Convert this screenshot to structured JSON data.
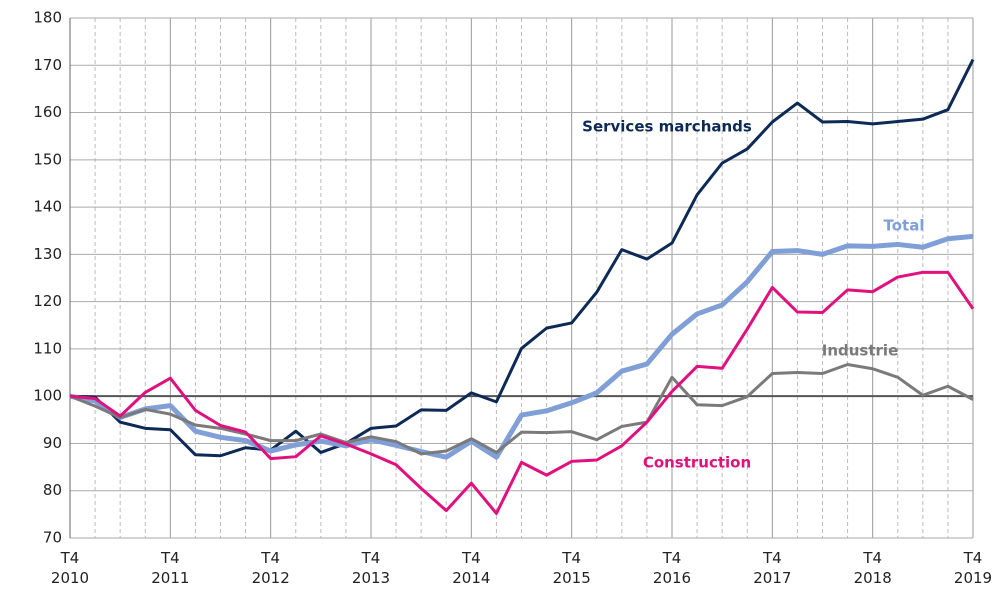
{
  "chart_data": {
    "type": "line",
    "categories": [
      "T4 2010",
      null,
      null,
      null,
      "T4 2011",
      null,
      null,
      null,
      "T4 2012",
      null,
      null,
      null,
      "T4 2013",
      null,
      null,
      null,
      "T4 2014",
      null,
      null,
      null,
      "T4 2015",
      null,
      null,
      null,
      "T4 2016",
      null,
      null,
      null,
      "T4 2017",
      null,
      null,
      null,
      "T4 2018",
      null,
      null,
      null,
      "T4 2019"
    ],
    "ylim": [
      70,
      180
    ],
    "yticks": [
      70,
      80,
      90,
      100,
      110,
      120,
      130,
      140,
      150,
      160,
      170,
      180
    ],
    "grid": true,
    "reference_line": 100,
    "series": [
      {
        "name": "Services marchands",
        "color": "#0c2a55",
        "values": [
          100,
          99.8,
          94.5,
          93.2,
          92.9,
          87.6,
          87.4,
          89.1,
          88.6,
          92.6,
          88.1,
          90.0,
          93.2,
          93.7,
          97.1,
          97.0,
          100.7,
          98.8,
          110.1,
          114.4,
          115.5,
          122.0,
          131.0,
          129.0,
          132.4,
          142.6,
          149.3,
          152.3,
          158.0,
          162.0,
          158.0,
          158.1,
          157.6,
          158.1,
          158.6,
          160.6,
          171.2
        ]
      },
      {
        "name": "Total",
        "color": "#7f9fd6",
        "values": [
          100,
          99.0,
          95.5,
          97.3,
          98.0,
          92.6,
          91.3,
          90.6,
          88.4,
          89.7,
          90.5,
          89.5,
          90.8,
          89.6,
          88.3,
          87.1,
          90.5,
          87.1,
          96.0,
          96.9,
          98.6,
          100.7,
          105.3,
          106.8,
          113.1,
          117.4,
          119.3,
          124.2,
          130.6,
          130.8,
          130.0,
          131.8,
          131.7,
          132.1,
          131.5,
          133.3,
          133.8
        ]
      },
      {
        "name": "Industrie",
        "color": "#7a7a7a",
        "values": [
          100,
          97.9,
          95.5,
          97.2,
          96.2,
          93.9,
          93.2,
          92.0,
          90.6,
          90.6,
          92.0,
          90.2,
          91.4,
          90.4,
          87.8,
          88.4,
          91.0,
          88.1,
          92.4,
          92.3,
          92.5,
          90.8,
          93.6,
          94.5,
          104.0,
          98.2,
          98.0,
          99.9,
          104.8,
          105.0,
          104.8,
          106.7,
          105.8,
          104.0,
          100.2,
          102.1,
          99.3
        ]
      },
      {
        "name": "Construction",
        "color": "#e0117f",
        "values": [
          100,
          99.5,
          95.8,
          100.8,
          103.8,
          97.0,
          93.8,
          92.4,
          86.8,
          87.2,
          91.6,
          89.9,
          87.8,
          85.5,
          80.5,
          75.8,
          81.6,
          75.2,
          86.0,
          83.3,
          86.2,
          86.5,
          89.5,
          94.5,
          101.0,
          106.3,
          105.9,
          114.2,
          123.0,
          117.8,
          117.7,
          122.5,
          122.1,
          125.2,
          126.2,
          126.2,
          118.5
        ]
      }
    ]
  }
}
